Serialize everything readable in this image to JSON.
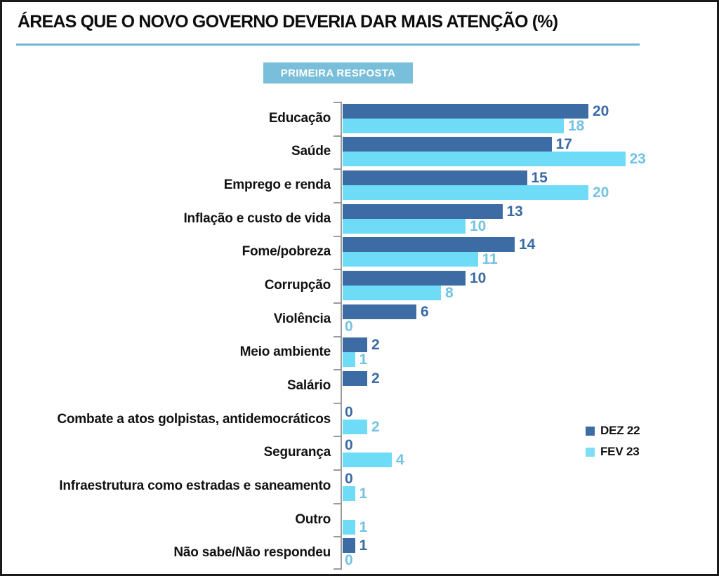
{
  "title": "ÁREAS QUE O NOVO GOVERNO DEVERIA DAR MAIS ATENÇÃO (%)",
  "badge": "PRIMEIRA RESPOSTA",
  "legend": {
    "items": [
      {
        "label": "DEZ 22",
        "color": "#3d6ca5"
      },
      {
        "label": "FEV 23",
        "color": "#7fdef5"
      }
    ]
  },
  "colors": {
    "dark_series": "#3d6ca5",
    "light_series": "#6edcf6",
    "dark_value_label": "#3a6aa6",
    "light_value_label": "#72c3e2",
    "title_underline": "#6db6d8",
    "badge_bg": "#79bedb",
    "axis": "#9b9b9b",
    "frame": "#1a1a1a"
  },
  "chart_data": {
    "type": "bar",
    "orientation": "horizontal",
    "title": "ÁREAS QUE O NOVO GOVERNO DEVERIA DAR MAIS ATENÇÃO (%)",
    "subtitle": "PRIMEIRA RESPOSTA",
    "unit": "%",
    "xlim": [
      0,
      23
    ],
    "grid": false,
    "value_labels": true,
    "legend_position": "middle-right",
    "categories": [
      "Educação",
      "Saúde",
      "Emprego e renda",
      "Inflação e custo de vida",
      "Fome/pobreza",
      "Corrupção",
      "Violência",
      "Meio ambiente",
      "Salário",
      "Combate a atos golpistas, antidemocráticos",
      "Segurança",
      "Infraestrutura como estradas e saneamento",
      "Outro",
      "Não sabe/Não respondeu"
    ],
    "series": [
      {
        "name": "DEZ 22",
        "color": "#3d6ca5",
        "values": [
          20,
          17,
          15,
          13,
          14,
          10,
          6,
          2,
          2,
          0,
          0,
          0,
          null,
          1
        ]
      },
      {
        "name": "FEV 23",
        "color": "#6edcf6",
        "values": [
          18,
          23,
          20,
          10,
          11,
          8,
          0,
          1,
          null,
          2,
          4,
          1,
          1,
          0
        ]
      }
    ]
  }
}
